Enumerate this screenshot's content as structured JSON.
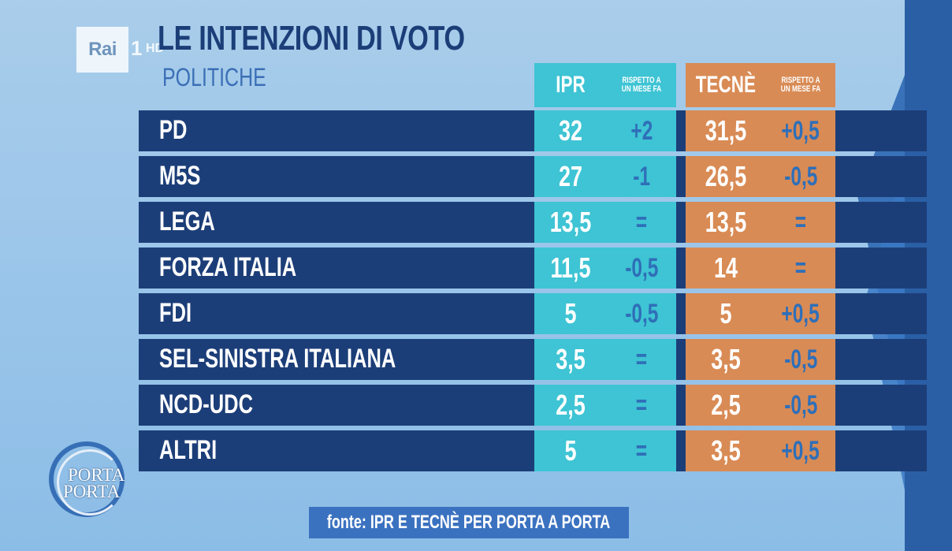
{
  "channel": {
    "brand": "Rai",
    "number": "1",
    "hd": "HD"
  },
  "title": "LE INTENZIONI DI VOTO",
  "subtitle": "POLITICHE",
  "headers": {
    "ipr": "IPR",
    "ipr_delta": "RISPETTO A UN MESE FA",
    "tecne": "TECNÈ",
    "tecne_delta": "RISPETTO A UN MESE FA"
  },
  "show_logo": {
    "line1": "PORTA",
    "line2": "PORTA",
    "connector": "a"
  },
  "source": "fonte: IPR E TECNÈ PER PORTA A PORTA",
  "colors": {
    "bar": "#1c3e78",
    "ipr": "#3ec4d4",
    "tecne": "#d98b55",
    "delta_text": "#2f6fb8",
    "value_text": "#ffffff"
  },
  "chart_data": {
    "type": "table",
    "title": "LE INTENZIONI DI VOTO",
    "subtitle": "POLITICHE",
    "columns": [
      "IPR",
      "RISPETTO A UN MESE FA",
      "TECNÈ",
      "RISPETTO A UN MESE FA"
    ],
    "rows": [
      {
        "party": "PD",
        "ipr": "32",
        "ipr_delta": "+2",
        "tecne": "31,5",
        "tecne_delta": "+0,5"
      },
      {
        "party": "M5S",
        "ipr": "27",
        "ipr_delta": "-1",
        "tecne": "26,5",
        "tecne_delta": "-0,5"
      },
      {
        "party": "LEGA",
        "ipr": "13,5",
        "ipr_delta": "=",
        "tecne": "13,5",
        "tecne_delta": "="
      },
      {
        "party": "FORZA ITALIA",
        "ipr": "11,5",
        "ipr_delta": "-0,5",
        "tecne": "14",
        "tecne_delta": "="
      },
      {
        "party": "FDI",
        "ipr": "5",
        "ipr_delta": "-0,5",
        "tecne": "5",
        "tecne_delta": "+0,5"
      },
      {
        "party": "SEL-SINISTRA ITALIANA",
        "ipr": "3,5",
        "ipr_delta": "=",
        "tecne": "3,5",
        "tecne_delta": "-0,5"
      },
      {
        "party": "NCD-UDC",
        "ipr": "2,5",
        "ipr_delta": "=",
        "tecne": "2,5",
        "tecne_delta": "-0,5"
      },
      {
        "party": "ALTRI",
        "ipr": "5",
        "ipr_delta": "=",
        "tecne": "3,5",
        "tecne_delta": "+0,5"
      }
    ]
  }
}
